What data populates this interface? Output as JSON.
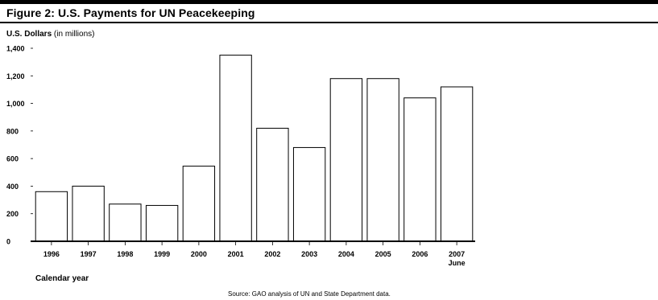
{
  "figure": {
    "title": "Figure 2: U.S. Payments for UN Peacekeeping",
    "source": "Source: GAO analysis of UN and State Department data."
  },
  "chart_data": {
    "type": "bar",
    "categories": [
      "1996",
      "1997",
      "1998",
      "1999",
      "2000",
      "2001",
      "2002",
      "2003",
      "2004",
      "2005",
      "2006",
      "2007"
    ],
    "category_sublabels": [
      "",
      "",
      "",
      "",
      "",
      "",
      "",
      "",
      "",
      "",
      "",
      "June"
    ],
    "values": [
      360,
      400,
      270,
      260,
      545,
      1350,
      820,
      680,
      1180,
      1180,
      1040,
      1120
    ],
    "ylabel": "U.S. Dollars",
    "ylabel_unit": "(in millions)",
    "xlabel": "Calendar year",
    "ylim": [
      0,
      1400
    ],
    "yticks": [
      0,
      200,
      400,
      600,
      800,
      "1,000",
      "1,200",
      "1,400"
    ],
    "grid": false,
    "bar_fill": "#ffffff",
    "bar_stroke": "#000000"
  }
}
